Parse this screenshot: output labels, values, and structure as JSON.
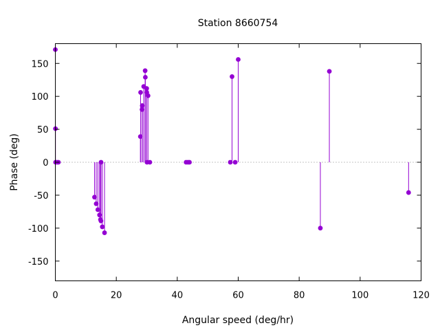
{
  "chart_data": {
    "type": "scatter",
    "style": "impulses-with-points",
    "title": "Station 8660754",
    "xlabel": "Angular speed (deg/hr)",
    "ylabel": "Phase (deg)",
    "xlim": [
      0,
      120
    ],
    "ylim": [
      -180,
      180
    ],
    "xticks": [
      0,
      20,
      40,
      60,
      80,
      100,
      120
    ],
    "yticks": [
      -150,
      -100,
      -50,
      0,
      50,
      100,
      150
    ],
    "grid": false,
    "zero_line": "dotted",
    "series_color": "#9400d3",
    "points": [
      {
        "x": 0.0,
        "y": 171
      },
      {
        "x": 0.04,
        "y": 51
      },
      {
        "x": 0.08,
        "y": 0
      },
      {
        "x": 0.5,
        "y": 0
      },
      {
        "x": 1.0,
        "y": 0
      },
      {
        "x": 12.85,
        "y": -53
      },
      {
        "x": 13.4,
        "y": -63
      },
      {
        "x": 13.94,
        "y": -72
      },
      {
        "x": 14.5,
        "y": -80
      },
      {
        "x": 14.8,
        "y": -87
      },
      {
        "x": 14.96,
        "y": -89
      },
      {
        "x": 15.0,
        "y": 0
      },
      {
        "x": 15.4,
        "y": -98
      },
      {
        "x": 16.14,
        "y": -107
      },
      {
        "x": 27.9,
        "y": 39
      },
      {
        "x": 27.97,
        "y": 106
      },
      {
        "x": 28.44,
        "y": 80
      },
      {
        "x": 28.51,
        "y": 86
      },
      {
        "x": 28.99,
        "y": 115
      },
      {
        "x": 29.46,
        "y": 139
      },
      {
        "x": 29.53,
        "y": 129
      },
      {
        "x": 29.96,
        "y": 112
      },
      {
        "x": 30.0,
        "y": 106
      },
      {
        "x": 30.08,
        "y": 0
      },
      {
        "x": 30.41,
        "y": 101
      },
      {
        "x": 31.0,
        "y": 0
      },
      {
        "x": 42.9,
        "y": 0
      },
      {
        "x": 43.5,
        "y": 0
      },
      {
        "x": 44.0,
        "y": 0
      },
      {
        "x": 57.4,
        "y": 0
      },
      {
        "x": 57.97,
        "y": 130
      },
      {
        "x": 59.0,
        "y": 0
      },
      {
        "x": 60.0,
        "y": 156
      },
      {
        "x": 86.95,
        "y": -100
      },
      {
        "x": 89.9,
        "y": 138
      },
      {
        "x": 115.9,
        "y": -46
      }
    ]
  }
}
